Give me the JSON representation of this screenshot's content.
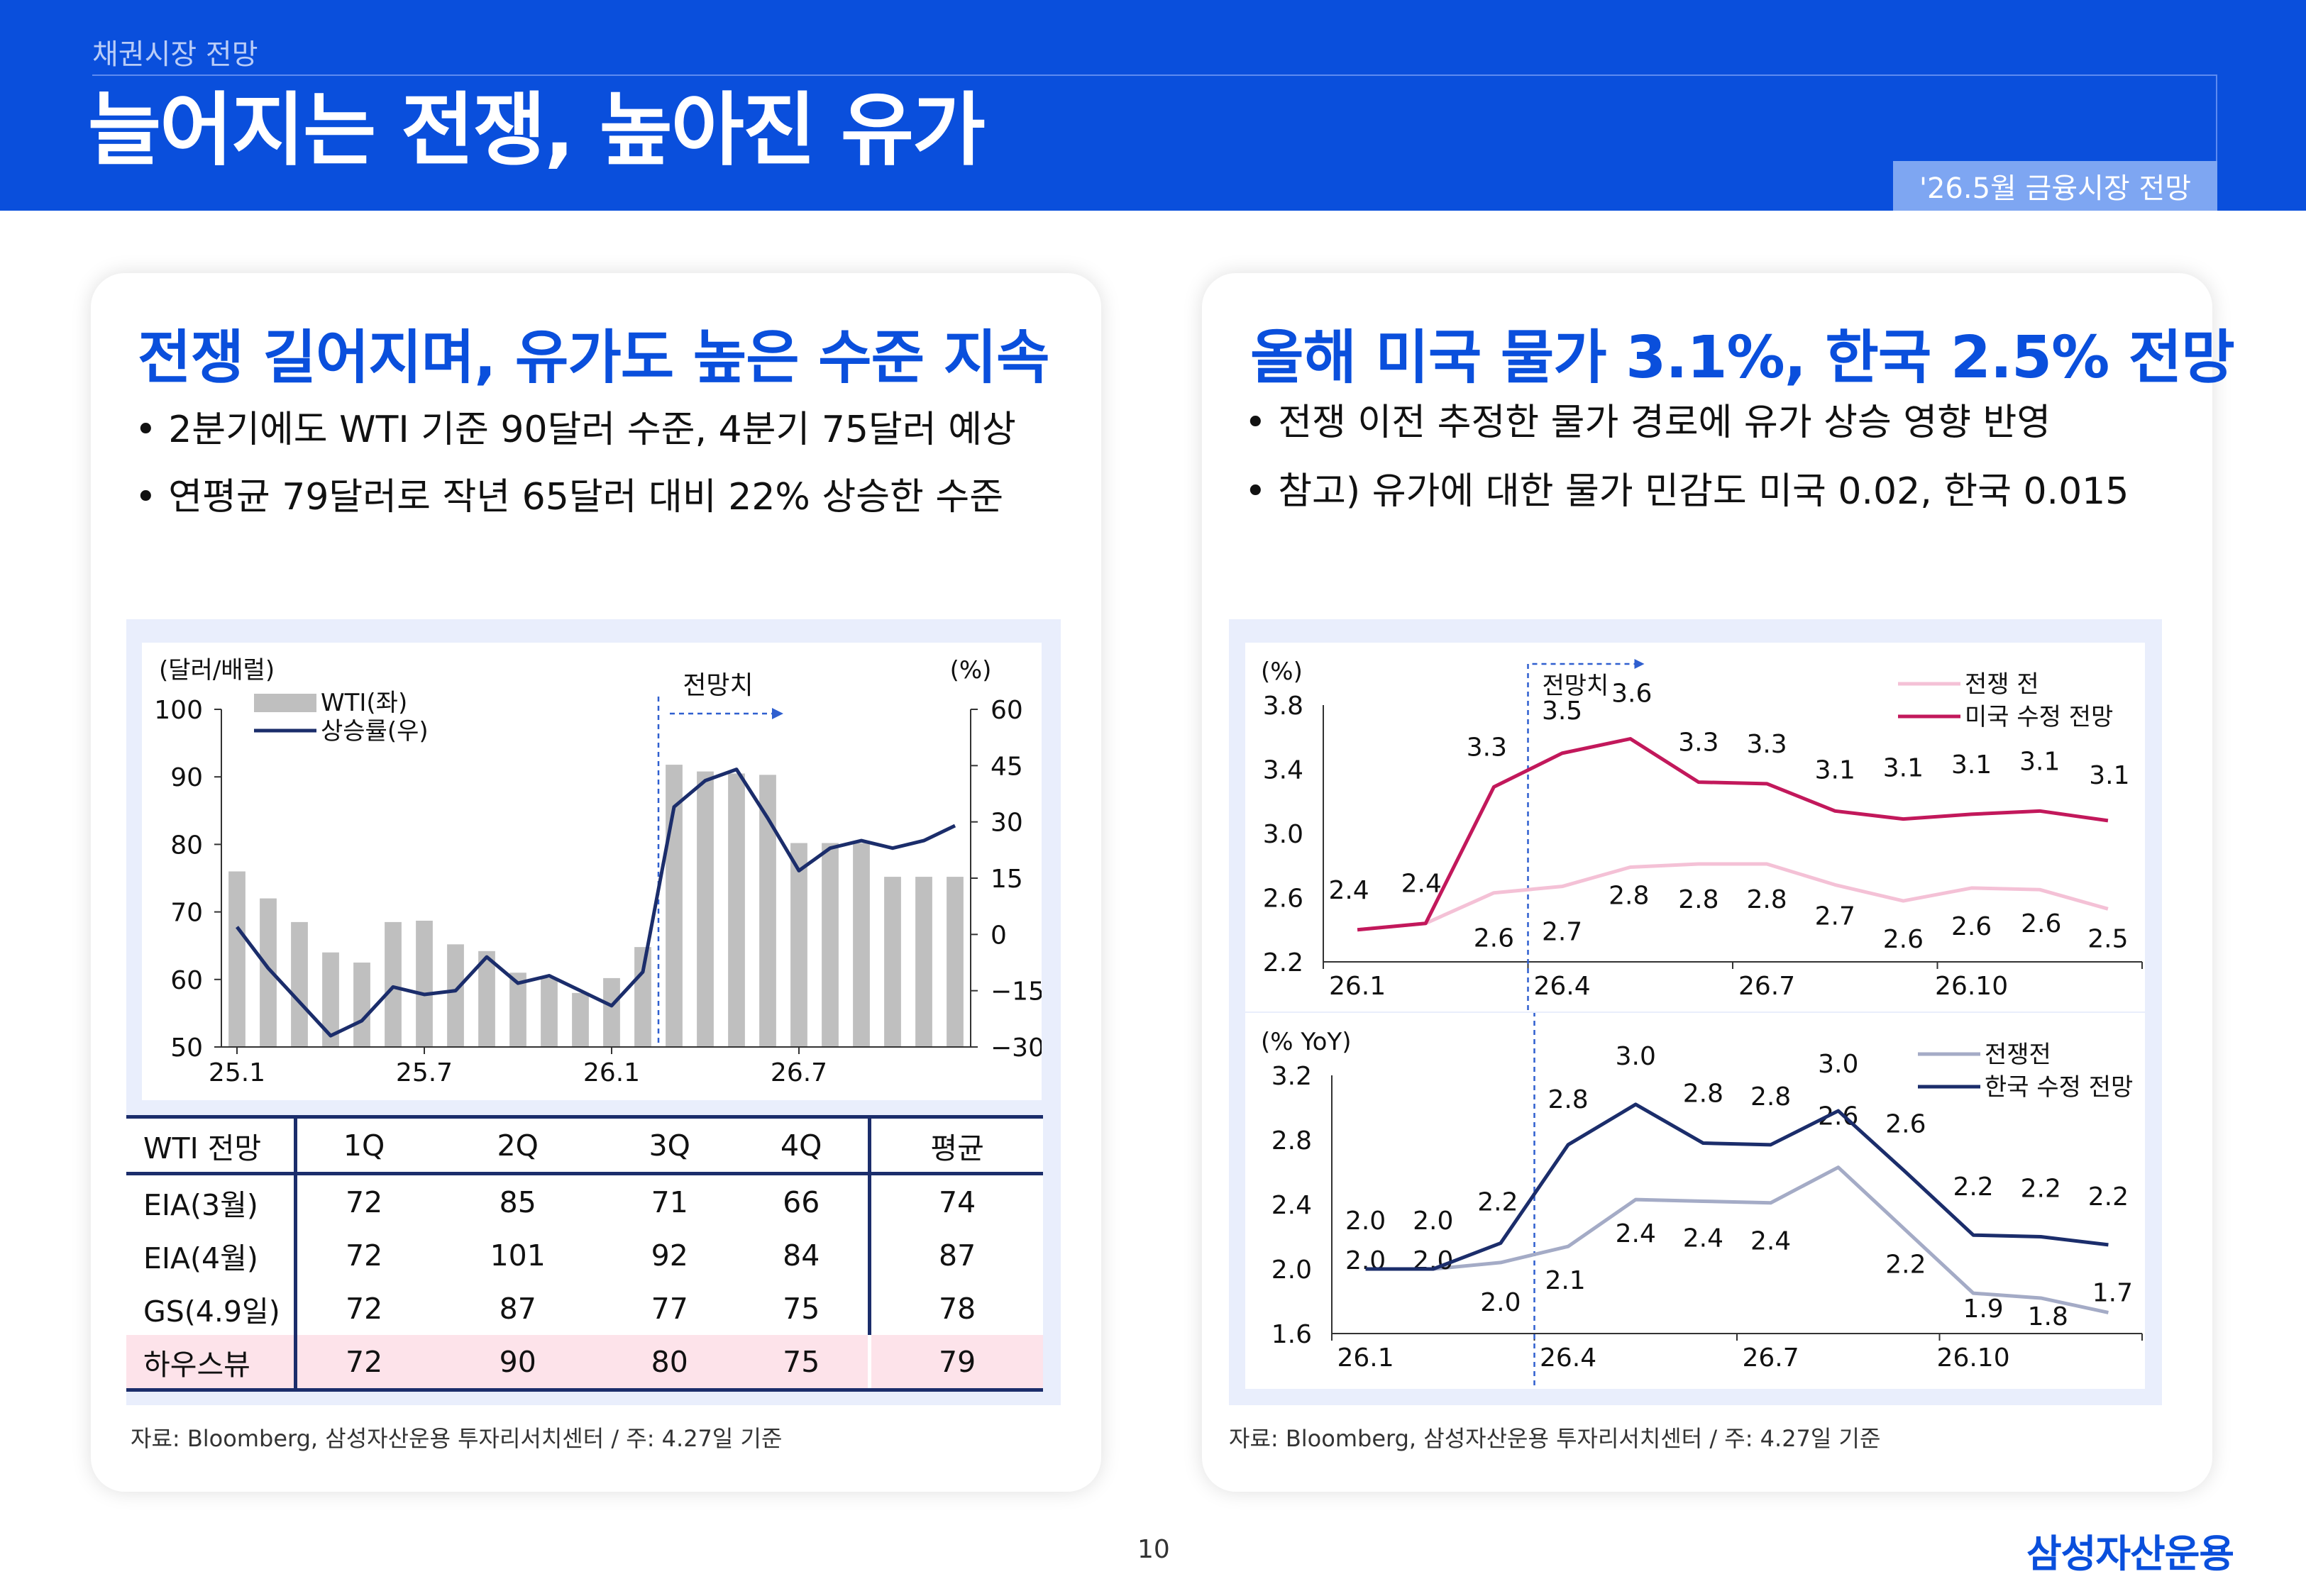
{
  "header": {
    "crumb": "채권시장 전망",
    "title": "늘어지는 전쟁, 높아진 유가",
    "tag": "'26.5월 금융시장 전망"
  },
  "left": {
    "heading": "전쟁 길어지며, 유가도 높은 수준 지속",
    "bullets": [
      "• 2분기에도 WTI 기준 90달러 수준, 4분기 75달러 예상",
      "• 연평균 79달러로 작년 65달러 대비 22% 상승한 수준"
    ],
    "source": "자료: Bloomberg, 삼성자산운용 투자리서치센터 / 주: 4.27일 기준",
    "table": {
      "headers": [
        "WTI 전망",
        "1Q",
        "2Q",
        "3Q",
        "4Q",
        "평균"
      ],
      "rows": [
        [
          "EIA(3월)",
          "72",
          "85",
          "71",
          "66",
          "74"
        ],
        [
          "EIA(4월)",
          "72",
          "101",
          "92",
          "84",
          "87"
        ],
        [
          "GS(4.9일)",
          "72",
          "87",
          "77",
          "75",
          "78"
        ],
        [
          "하우스뷰",
          "72",
          "90",
          "80",
          "75",
          "79"
        ]
      ]
    }
  },
  "right": {
    "heading": "올해 미국 물가 3.1%, 한국 2.5% 전망",
    "bullets": [
      "• 전쟁 이전 추정한 물가 경로에 유가 상승 영향 반영",
      "• 참고) 유가에 대한 물가 민감도 미국 0.02, 한국 0.015"
    ],
    "source": "자료: Bloomberg, 삼성자산운용 투자리서치센터 / 주: 4.27일 기준"
  },
  "page_number": "10",
  "logo": "삼성자산운용",
  "colors": {
    "brand": "#0a4fdc",
    "bar": "#bfbfbf",
    "navy": "#1b2d6b",
    "magenta": "#c2185b",
    "pink": "#f4c1d6",
    "grey_blue": "#a4abc6"
  },
  "chart_data": [
    {
      "type": "bar",
      "title": "",
      "ylabel": "(달러/배럴)",
      "y2label": "(%)",
      "ylim": [
        50,
        100
      ],
      "y2lim": [
        -30,
        60
      ],
      "yticks": [
        "100",
        "90",
        "80",
        "70",
        "60",
        "50"
      ],
      "y2ticks": [
        "60",
        "45",
        "30",
        "15",
        "0",
        "−15",
        "−30"
      ],
      "xticks": [
        "25.1",
        "25.7",
        "26.1",
        "26.7"
      ],
      "annotation": "전망치",
      "legend": [
        "WTI(좌)",
        "상승률(우)"
      ],
      "categories": [
        "25.1",
        "25.2",
        "25.3",
        "25.4",
        "25.5",
        "25.6",
        "25.7",
        "25.8",
        "25.9",
        "25.10",
        "25.11",
        "25.12",
        "26.1",
        "26.2",
        "26.3",
        "26.4",
        "26.5",
        "26.6",
        "26.7",
        "26.8",
        "26.9",
        "26.10",
        "26.11",
        "26.12"
      ],
      "series": [
        {
          "name": "WTI(좌)",
          "type": "bar",
          "axis": "left",
          "values": [
            76,
            72,
            68.5,
            64,
            62.5,
            68.5,
            68.7,
            65.2,
            64.2,
            61,
            60.2,
            58,
            60.2,
            64.8,
            91.8,
            90.8,
            90.5,
            90.3,
            80.2,
            80.2,
            80.2,
            75.2,
            75.2,
            75.2
          ]
        },
        {
          "name": "상승률(우)",
          "type": "line",
          "axis": "right",
          "values": [
            2,
            -9,
            -18,
            -27,
            -23,
            -14,
            -16,
            -15,
            -6,
            -13,
            -11,
            -15,
            -19,
            -10,
            34,
            41,
            44,
            31,
            17,
            23,
            25,
            23,
            25,
            29
          ]
        }
      ]
    },
    {
      "type": "line",
      "title": "",
      "ylabel": "(%)",
      "ylim": [
        2.2,
        3.8
      ],
      "yticks": [
        "3.8",
        "3.4",
        "3.0",
        "2.6",
        "2.2"
      ],
      "xticks": [
        "26.1",
        "26.4",
        "26.7",
        "26.10"
      ],
      "annotation": "전망치",
      "legend": [
        "전쟁 전",
        "미국 수정 전망"
      ],
      "x": [
        "26.1",
        "26.2",
        "26.3",
        "26.4",
        "26.5",
        "26.6",
        "26.7",
        "26.8",
        "26.9",
        "26.10",
        "26.11",
        "26.12"
      ],
      "series": [
        {
          "name": "전쟁 전",
          "values": [
            2.4,
            2.4,
            2.6,
            2.7,
            2.8,
            2.8,
            2.8,
            2.7,
            2.6,
            2.6,
            2.6,
            2.5
          ],
          "labels": [
            "2.4",
            "2.4",
            "2.6",
            "2.7",
            "2.8",
            "2.8",
            "2.8",
            "2.7",
            "2.6",
            "2.6",
            "2.6",
            "2.5"
          ],
          "plot": [
            2.4,
            2.44,
            2.63,
            2.67,
            2.79,
            2.81,
            2.81,
            2.68,
            2.58,
            2.66,
            2.65,
            2.53
          ]
        },
        {
          "name": "미국 수정 전망",
          "values": [
            2.4,
            2.4,
            3.3,
            3.5,
            3.6,
            3.3,
            3.3,
            3.1,
            3.1,
            3.1,
            3.1,
            3.1
          ],
          "labels": [
            "2.4",
            "2.4",
            "3.3",
            "3.5",
            "3.6",
            "3.3",
            "3.3",
            "3.1",
            "3.1",
            "3.1",
            "3.1",
            "3.1"
          ],
          "plot": [
            2.4,
            2.44,
            3.29,
            3.5,
            3.59,
            3.32,
            3.31,
            3.14,
            3.09,
            3.12,
            3.14,
            3.08
          ]
        }
      ]
    },
    {
      "type": "line",
      "title": "",
      "ylabel": "(% YoY)",
      "ylim": [
        1.6,
        3.2
      ],
      "yticks": [
        "3.2",
        "2.8",
        "2.4",
        "2.0",
        "1.6"
      ],
      "xticks": [
        "26.1",
        "26.4",
        "26.7",
        "26.10"
      ],
      "legend": [
        "전쟁전",
        "한국 수정 전망"
      ],
      "x": [
        "26.1",
        "26.2",
        "26.3",
        "26.4",
        "26.5",
        "26.6",
        "26.7",
        "26.8",
        "26.9",
        "26.10",
        "26.11",
        "26.12"
      ],
      "series": [
        {
          "name": "전쟁전",
          "values": [
            2.0,
            2.0,
            2.0,
            2.1,
            2.4,
            2.4,
            2.4,
            2.6,
            2.2,
            1.9,
            1.8,
            1.7
          ],
          "labels": [
            "2.0",
            "2.0",
            "2.0",
            "2.1",
            "2.4",
            "2.4",
            "2.4",
            "2.6",
            "2.2",
            "1.9",
            "1.8",
            "1.7"
          ],
          "plot": [
            2.0,
            2.0,
            2.04,
            2.14,
            2.43,
            2.42,
            2.41,
            2.63,
            2.24,
            1.85,
            1.82,
            1.73
          ]
        },
        {
          "name": "한국 수정 전망",
          "values": [
            2.0,
            2.0,
            2.2,
            2.8,
            3.0,
            2.8,
            2.8,
            3.0,
            2.6,
            2.2,
            2.2,
            2.2
          ],
          "labels": [
            "2.0",
            "2.0",
            "2.2",
            "2.8",
            "3.0",
            "2.8",
            "2.8",
            "3.0",
            "2.6",
            "2.2",
            "2.2",
            "2.2"
          ],
          "plot": [
            2.0,
            2.0,
            2.16,
            2.77,
            3.02,
            2.78,
            2.77,
            2.98,
            2.6,
            2.21,
            2.2,
            2.15
          ]
        }
      ]
    }
  ]
}
